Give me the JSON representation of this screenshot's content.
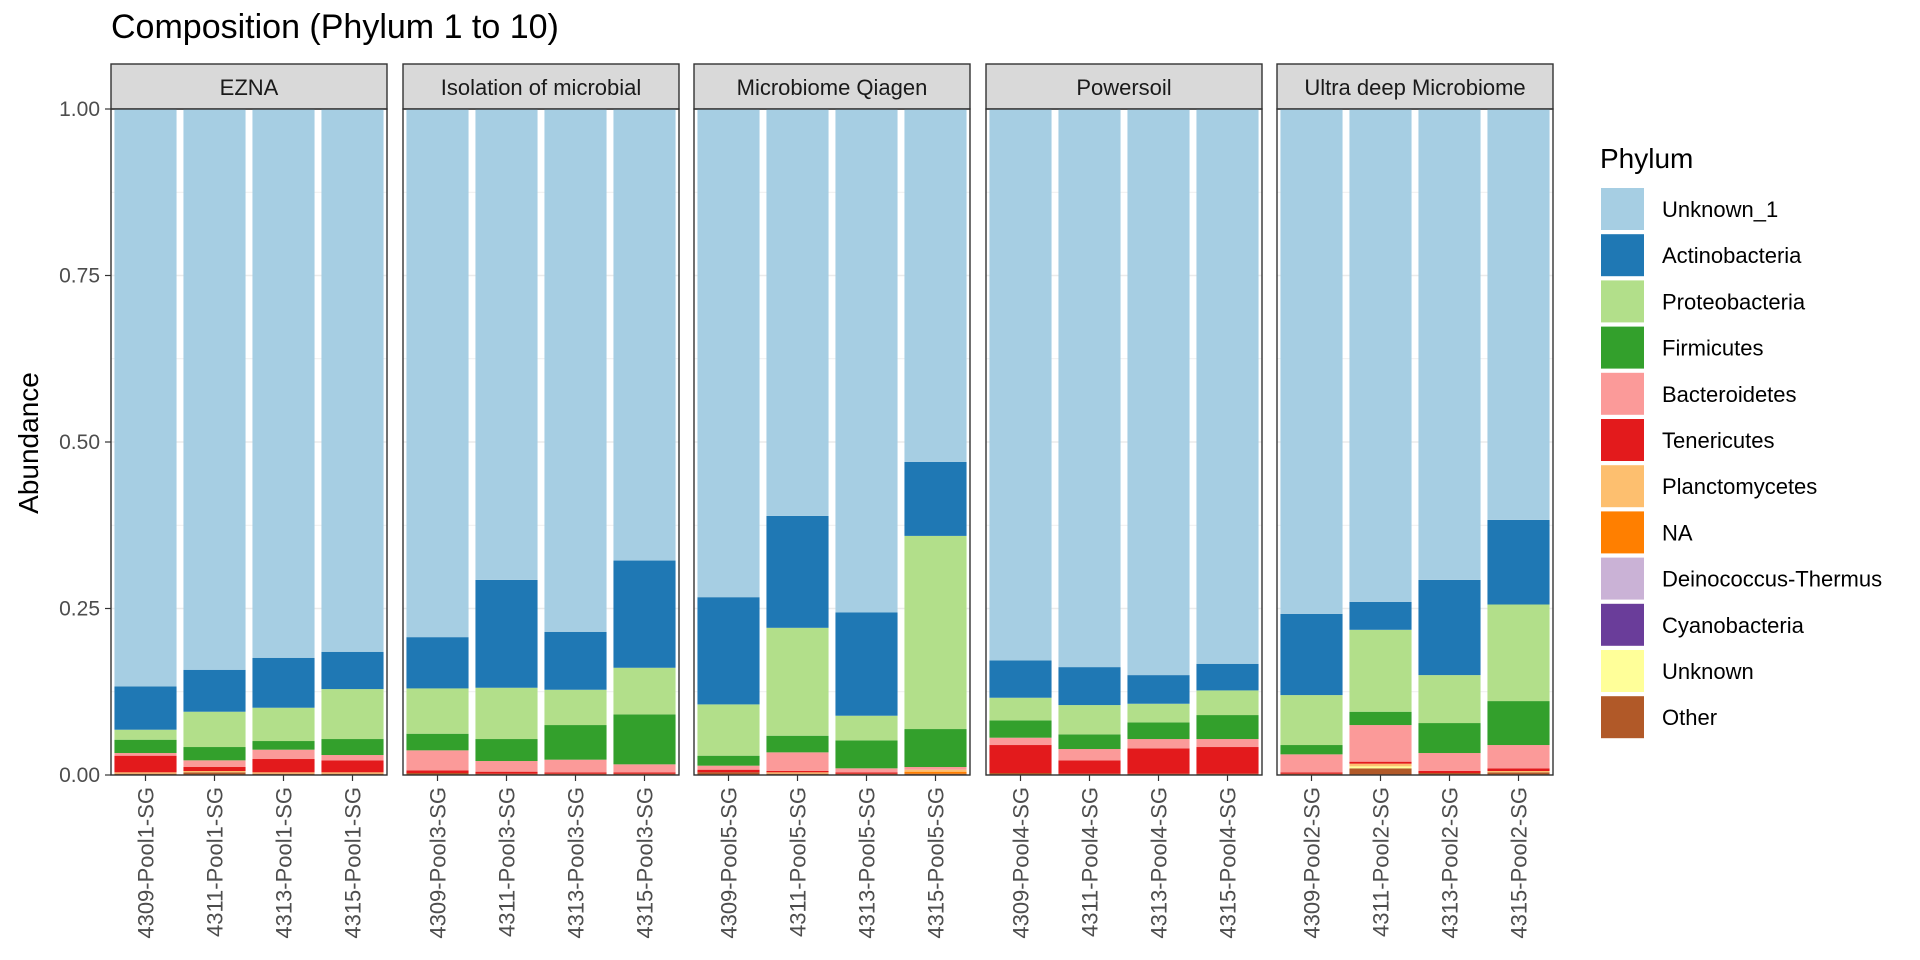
{
  "chart_data": {
    "type": "bar",
    "stacked": true,
    "faceted": true,
    "title": "Composition (Phylum 1 to 10)",
    "ylabel": "Abundance",
    "xlabel": "",
    "ylim": [
      0,
      1
    ],
    "yticks": [
      "0.00",
      "0.25",
      "0.50",
      "0.75",
      "1.00"
    ],
    "grid": true,
    "legend": {
      "title": "Phylum",
      "placement": "right",
      "entries": [
        {
          "name": "Unknown_1",
          "color": "#A6CEE3"
        },
        {
          "name": "Actinobacteria",
          "color": "#1F78B4"
        },
        {
          "name": "Proteobacteria",
          "color": "#B2DF8A"
        },
        {
          "name": "Firmicutes",
          "color": "#33A02C"
        },
        {
          "name": "Bacteroidetes",
          "color": "#FB9A99"
        },
        {
          "name": "Tenericutes",
          "color": "#E31A1C"
        },
        {
          "name": "Planctomycetes",
          "color": "#FDBF6F"
        },
        {
          "name": "NA",
          "color": "#FF7F00"
        },
        {
          "name": "Deinococcus-Thermus",
          "color": "#CAB2D6"
        },
        {
          "name": "Cyanobacteria",
          "color": "#6A3D9A"
        },
        {
          "name": "Unknown",
          "color": "#FFFF99"
        },
        {
          "name": "Other",
          "color": "#B15928"
        }
      ]
    },
    "stack_order_bottom_to_top": [
      "Other",
      "Unknown",
      "Cyanobacteria",
      "Deinococcus-Thermus",
      "NA",
      "Planctomycetes",
      "Tenericutes",
      "Bacteroidetes",
      "Firmicutes",
      "Proteobacteria",
      "Actinobacteria",
      "Unknown_1"
    ],
    "facets": [
      {
        "name": "EZNA",
        "samples": [
          {
            "label": "4309-Pool1-SG",
            "values": {
              "Other": 0.002,
              "Planctomycetes": 0.002,
              "Tenericutes": 0.025,
              "Bacteroidetes": 0.004,
              "Firmicutes": 0.02,
              "Proteobacteria": 0.015,
              "Actinobacteria": 0.065,
              "Unknown_1": 0.867
            }
          },
          {
            "label": "4311-Pool1-SG",
            "values": {
              "Other": 0.004,
              "Planctomycetes": 0.002,
              "Tenericutes": 0.006,
              "Bacteroidetes": 0.01,
              "Firmicutes": 0.02,
              "Proteobacteria": 0.053,
              "Actinobacteria": 0.063,
              "Unknown_1": 0.842
            }
          },
          {
            "label": "4313-Pool1-SG",
            "values": {
              "Other": 0.002,
              "Planctomycetes": 0.002,
              "Tenericutes": 0.02,
              "Bacteroidetes": 0.014,
              "Firmicutes": 0.013,
              "Proteobacteria": 0.05,
              "Actinobacteria": 0.075,
              "Unknown_1": 0.824
            }
          },
          {
            "label": "4315-Pool1-SG",
            "values": {
              "Other": 0.002,
              "Planctomycetes": 0.002,
              "Tenericutes": 0.018,
              "Bacteroidetes": 0.008,
              "Firmicutes": 0.024,
              "Proteobacteria": 0.075,
              "Actinobacteria": 0.056,
              "Unknown_1": 0.815
            }
          }
        ]
      },
      {
        "name": "Isolation of microbial",
        "samples": [
          {
            "label": "4309-Pool3-SG",
            "values": {
              "Other": 0.003,
              "Tenericutes": 0.004,
              "Bacteroidetes": 0.03,
              "Firmicutes": 0.025,
              "Proteobacteria": 0.068,
              "Actinobacteria": 0.077,
              "Unknown_1": 0.793
            }
          },
          {
            "label": "4311-Pool3-SG",
            "values": {
              "Other": 0.002,
              "Tenericutes": 0.003,
              "Bacteroidetes": 0.016,
              "Firmicutes": 0.033,
              "Proteobacteria": 0.077,
              "Actinobacteria": 0.162,
              "Unknown_1": 0.707
            }
          },
          {
            "label": "4313-Pool3-SG",
            "values": {
              "Other": 0.002,
              "Tenericutes": 0.002,
              "Bacteroidetes": 0.019,
              "Firmicutes": 0.052,
              "Proteobacteria": 0.053,
              "Actinobacteria": 0.087,
              "Unknown_1": 0.785
            }
          },
          {
            "label": "4315-Pool3-SG",
            "values": {
              "Other": 0.002,
              "Tenericutes": 0.002,
              "Bacteroidetes": 0.012,
              "Firmicutes": 0.075,
              "Proteobacteria": 0.07,
              "Actinobacteria": 0.161,
              "Unknown_1": 0.678
            }
          }
        ]
      },
      {
        "name": "Microbiome Qiagen",
        "samples": [
          {
            "label": "4309-Pool5-SG",
            "values": {
              "Other": 0.004,
              "Tenericutes": 0.004,
              "Bacteroidetes": 0.006,
              "Firmicutes": 0.015,
              "Proteobacteria": 0.077,
              "Actinobacteria": 0.161,
              "Unknown_1": 0.733
            }
          },
          {
            "label": "4311-Pool5-SG",
            "values": {
              "Other": 0.002,
              "Planctomycetes": 0.002,
              "Tenericutes": 0.002,
              "Bacteroidetes": 0.028,
              "Firmicutes": 0.025,
              "Proteobacteria": 0.162,
              "Actinobacteria": 0.168,
              "Unknown_1": 0.611
            }
          },
          {
            "label": "4313-Pool5-SG",
            "values": {
              "Other": 0.002,
              "Tenericutes": 0.002,
              "Bacteroidetes": 0.006,
              "Firmicutes": 0.042,
              "Proteobacteria": 0.037,
              "Actinobacteria": 0.155,
              "Unknown_1": 0.756
            }
          },
          {
            "label": "4315-Pool5-SG",
            "values": {
              "Other": 0.002,
              "Planctomycetes": 0.003,
              "NA": 0.003,
              "Bacteroidetes": 0.004,
              "Firmicutes": 0.057,
              "Proteobacteria": 0.29,
              "Actinobacteria": 0.111,
              "Unknown_1": 0.53
            }
          }
        ]
      },
      {
        "name": "Powersoil",
        "samples": [
          {
            "label": "4309-Pool4-SG",
            "values": {
              "Other": 0.003,
              "Tenericutes": 0.042,
              "Bacteroidetes": 0.011,
              "Firmicutes": 0.026,
              "Proteobacteria": 0.034,
              "Actinobacteria": 0.056,
              "Unknown_1": 0.828
            }
          },
          {
            "label": "4311-Pool4-SG",
            "values": {
              "Other": 0.002,
              "Tenericutes": 0.02,
              "Bacteroidetes": 0.017,
              "Firmicutes": 0.022,
              "Proteobacteria": 0.044,
              "Actinobacteria": 0.057,
              "Unknown_1": 0.838
            }
          },
          {
            "label": "4313-Pool4-SG",
            "values": {
              "Other": 0.002,
              "Tenericutes": 0.038,
              "Bacteroidetes": 0.014,
              "Firmicutes": 0.025,
              "Proteobacteria": 0.028,
              "Actinobacteria": 0.043,
              "Unknown_1": 0.85
            }
          },
          {
            "label": "4315-Pool4-SG",
            "values": {
              "Other": 0.002,
              "Tenericutes": 0.04,
              "Bacteroidetes": 0.012,
              "Firmicutes": 0.036,
              "Proteobacteria": 0.037,
              "Actinobacteria": 0.04,
              "Unknown_1": 0.833
            }
          }
        ]
      },
      {
        "name": "Ultra deep Microbiome",
        "samples": [
          {
            "label": "4309-Pool2-SG",
            "values": {
              "Other": 0.002,
              "Tenericutes": 0.002,
              "Bacteroidetes": 0.027,
              "Firmicutes": 0.014,
              "Proteobacteria": 0.075,
              "Actinobacteria": 0.122,
              "Unknown_1": 0.758
            }
          },
          {
            "label": "4311-Pool2-SG",
            "values": {
              "Other": 0.01,
              "Unknown": 0.003,
              "Planctomycetes": 0.004,
              "Tenericutes": 0.003,
              "Bacteroidetes": 0.055,
              "Firmicutes": 0.02,
              "Proteobacteria": 0.123,
              "Actinobacteria": 0.042,
              "Unknown_1": 0.74
            }
          },
          {
            "label": "4313-Pool2-SG",
            "values": {
              "Other": 0.003,
              "Tenericutes": 0.003,
              "Bacteroidetes": 0.027,
              "Firmicutes": 0.045,
              "Proteobacteria": 0.072,
              "Actinobacteria": 0.143,
              "Unknown_1": 0.707
            }
          },
          {
            "label": "4315-Pool2-SG",
            "values": {
              "Other": 0.004,
              "Planctomycetes": 0.002,
              "Tenericutes": 0.004,
              "Bacteroidetes": 0.035,
              "Firmicutes": 0.066,
              "Proteobacteria": 0.145,
              "Actinobacteria": 0.127,
              "Unknown_1": 0.617
            }
          }
        ]
      }
    ]
  }
}
